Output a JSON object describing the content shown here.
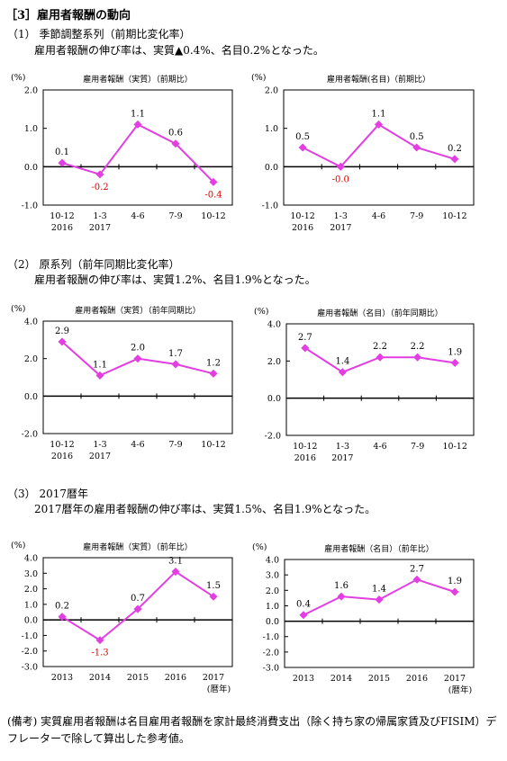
{
  "heading": "［3］雇用者報酬の動向",
  "sections": [
    {
      "title": "（1） 季節調整系列（前期比変化率）",
      "desc": "雇用者報酬の伸び率は、実質▲0.4%、名目0.2%となった。",
      "charts": [
        {
          "type": "line",
          "title": "雇用者報酬（実質）（前期比）",
          "unit": "(%)",
          "categories": [
            "10-12\n2016",
            "1-3\n2017",
            "4-6",
            "7-9",
            "10-12"
          ],
          "values": [
            0.1,
            -0.2,
            1.1,
            0.6,
            -0.4
          ],
          "value_labels": [
            "0.1",
            "-0.2",
            "1.1",
            "0.6",
            "-0.4"
          ],
          "ylim": [
            -1.0,
            2.0
          ],
          "yticks": [
            "2.0",
            "1.0",
            "0.0",
            "-1.0"
          ],
          "ytick_values": [
            2,
            1,
            0,
            -1
          ],
          "series_color": "#e23ee2",
          "negative_label_color": "#e00000"
        },
        {
          "type": "line",
          "title": "雇用者報酬(名目)（前期比）",
          "unit": "(%)",
          "categories": [
            "10-12\n2016",
            "1-3\n2017",
            "4-6",
            "7-9",
            "10-12"
          ],
          "values": [
            0.5,
            -0.0,
            1.1,
            0.5,
            0.2
          ],
          "value_labels": [
            "0.5",
            "-0.0",
            "1.1",
            "0.5",
            "0.2"
          ],
          "ylim": [
            -1.0,
            2.0
          ],
          "yticks": [
            "2.0",
            "1.0",
            "0.0",
            "-1.0"
          ],
          "ytick_values": [
            2,
            1,
            0,
            -1
          ],
          "series_color": "#e23ee2",
          "negative_label_color": "#e00000"
        }
      ]
    },
    {
      "title": "（2） 原系列（前年同期比変化率）",
      "desc": "雇用者報酬の伸び率は、実質1.2%、名目1.9%となった。",
      "charts": [
        {
          "type": "line",
          "title": "雇用者報酬（実質）（前年同期比）",
          "unit": "(%)",
          "categories": [
            "10-12\n2016",
            "1-3\n2017",
            "4-6",
            "7-9",
            "10-12"
          ],
          "values": [
            2.9,
            1.1,
            2.0,
            1.7,
            1.2
          ],
          "value_labels": [
            "2.9",
            "1.1",
            "2.0",
            "1.7",
            "1.2"
          ],
          "ylim": [
            -2.0,
            4.0
          ],
          "yticks": [
            "4.0",
            "2.0",
            "0.0",
            "-2.0"
          ],
          "ytick_values": [
            4,
            2,
            0,
            -2
          ],
          "series_color": "#e23ee2",
          "negative_label_color": "#e00000"
        },
        {
          "type": "line",
          "title": "雇用者報酬（名目）（前年同期比）",
          "unit": "(%)",
          "categories": [
            "10-12\n2016",
            "1-3\n2017",
            "4-6",
            "7-9",
            "10-12"
          ],
          "values": [
            2.7,
            1.4,
            2.2,
            2.2,
            1.9
          ],
          "value_labels": [
            "2.7",
            "1.4",
            "2.2",
            "2.2",
            "1.9"
          ],
          "ylim": [
            -2.0,
            4.0
          ],
          "yticks": [
            "4.0",
            "2.0",
            "0.0",
            "-2.0"
          ],
          "ytick_values": [
            4,
            2,
            0,
            -2
          ],
          "series_color": "#e23ee2",
          "negative_label_color": "#e00000"
        }
      ]
    },
    {
      "title": "（3） 2017暦年",
      "desc": "2017暦年の雇用者報酬の伸び率は、実質1.5%、名目1.9%となった。",
      "charts": [
        {
          "type": "line",
          "title": "雇用者報酬（実質）（前年比）",
          "unit": "(%)",
          "categories": [
            "2013",
            "2014",
            "2015",
            "2016",
            "2017\n(暦年)"
          ],
          "values": [
            0.2,
            -1.3,
            0.7,
            3.1,
            1.5
          ],
          "value_labels": [
            "0.2",
            "-1.3",
            "0.7",
            "3.1",
            "1.5"
          ],
          "ylim": [
            -3.0,
            4.0
          ],
          "yticks": [
            "4.0",
            "3.0",
            "2.0",
            "1.0",
            "0.0",
            "-1.0",
            "-2.0",
            "-3.0"
          ],
          "ytick_values": [
            4,
            3,
            2,
            1,
            0,
            -1,
            -2,
            -3
          ],
          "series_color": "#e23ee2",
          "negative_label_color": "#e00000"
        },
        {
          "type": "line",
          "title": "雇用者報酬（名目）（前年比）",
          "unit": "(%)",
          "categories": [
            "2013",
            "2014",
            "2015",
            "2016",
            "2017\n(暦年)"
          ],
          "values": [
            0.4,
            1.6,
            1.4,
            2.7,
            1.9
          ],
          "value_labels": [
            "0.4",
            "1.6",
            "1.4",
            "2.7",
            "1.9"
          ],
          "ylim": [
            -3.0,
            4.0
          ],
          "yticks": [
            "4.0",
            "3.0",
            "2.0",
            "1.0",
            "0.0",
            "-1.0",
            "-2.0",
            "-3.0"
          ],
          "ytick_values": [
            4,
            3,
            2,
            1,
            0,
            -1,
            -2,
            -3
          ],
          "series_color": "#e23ee2",
          "negative_label_color": "#e00000"
        }
      ]
    }
  ],
  "note": "(備考) 実質雇用者報酬は名目雇用者報酬を家計最終消費支出（除く持ち家の帰属家賃及びFISIM）デフレーターで除して算出した参考値。"
}
